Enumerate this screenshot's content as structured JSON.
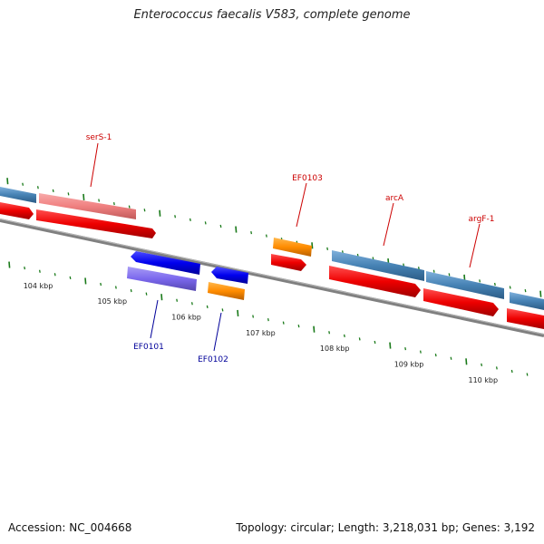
{
  "title": "Enterococcus faecalis V583, complete genome",
  "footer": {
    "accession": "Accession: NC_004668",
    "stats": "Topology: circular; Length: 3,218,031 bp; Genes: 3,192"
  },
  "scale": {
    "unit": "kbp",
    "ticks": [
      {
        "label": "104 kbp",
        "kbp": 104
      },
      {
        "label": "105 kbp",
        "kbp": 105
      },
      {
        "label": "106 kbp",
        "kbp": 106
      },
      {
        "label": "107 kbp",
        "kbp": 107
      },
      {
        "label": "108 kbp",
        "kbp": 108
      },
      {
        "label": "109 kbp",
        "kbp": 109
      },
      {
        "label": "110 kbp",
        "kbp": 110
      }
    ]
  },
  "gene_labels": {
    "serS1": "serS-1",
    "ef0103": "EF0103",
    "arcA": "arcA",
    "argF1": "argF-1",
    "ef0101": "EF0101",
    "ef0102": "EF0102"
  },
  "colors": {
    "forward_cds": "#ff0000",
    "forward_gene": "#4682b4",
    "rrna": "#ff8c00",
    "reverse_cds": "#0000ff",
    "reverse_gene": "#7b68ee",
    "label_forward": "#cc0000",
    "label_reverse": "#000099",
    "ticks": "#1a7a1a",
    "backbone": "#808080"
  }
}
